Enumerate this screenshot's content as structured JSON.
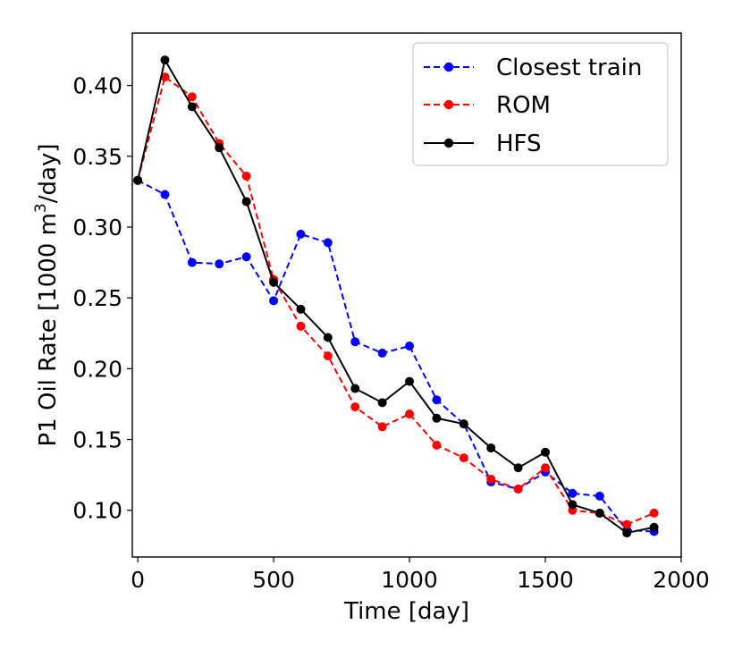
{
  "chart_data": {
    "type": "line",
    "title": "",
    "xlabel": "Time [day]",
    "ylabel_prefix": "P1 Oil Rate [1000 m",
    "ylabel_sup": "3",
    "ylabel_suffix": "/day]",
    "xlim": [
      -20,
      2000
    ],
    "ylim": [
      0.067,
      0.437
    ],
    "xticks": [
      0,
      500,
      1000,
      1500,
      2000
    ],
    "xtick_labels": [
      "0",
      "500",
      "1000",
      "1500",
      "2000"
    ],
    "yticks": [
      0.1,
      0.15,
      0.2,
      0.25,
      0.3,
      0.35,
      0.4
    ],
    "ytick_labels": [
      "0.10",
      "0.15",
      "0.20",
      "0.25",
      "0.30",
      "0.35",
      "0.40"
    ],
    "grid": false,
    "legend_position": "top-right",
    "x": [
      0,
      100,
      200,
      300,
      400,
      500,
      600,
      700,
      800,
      900,
      1000,
      1100,
      1200,
      1300,
      1400,
      1500,
      1600,
      1700,
      1800,
      1900
    ],
    "series": [
      {
        "name": "Closest train",
        "color": "#0000ff",
        "dashed": true,
        "values": [
          0.333,
          0.323,
          0.275,
          0.274,
          0.279,
          0.248,
          0.295,
          0.289,
          0.219,
          0.211,
          0.216,
          0.178,
          0.161,
          0.12,
          0.115,
          0.127,
          0.112,
          0.11,
          0.086,
          0.085
        ]
      },
      {
        "name": "ROM",
        "color": "#ff0000",
        "dashed": true,
        "values": [
          0.333,
          0.406,
          0.392,
          0.359,
          0.336,
          0.263,
          0.23,
          0.209,
          0.173,
          0.159,
          0.168,
          0.146,
          0.137,
          0.122,
          0.115,
          0.13,
          0.1,
          0.098,
          0.09,
          0.098
        ]
      },
      {
        "name": "HFS",
        "color": "#000000",
        "dashed": false,
        "values": [
          0.333,
          0.418,
          0.385,
          0.356,
          0.318,
          0.261,
          0.242,
          0.222,
          0.186,
          0.176,
          0.191,
          0.165,
          0.161,
          0.144,
          0.13,
          0.141,
          0.104,
          0.098,
          0.084,
          0.088
        ]
      }
    ]
  }
}
